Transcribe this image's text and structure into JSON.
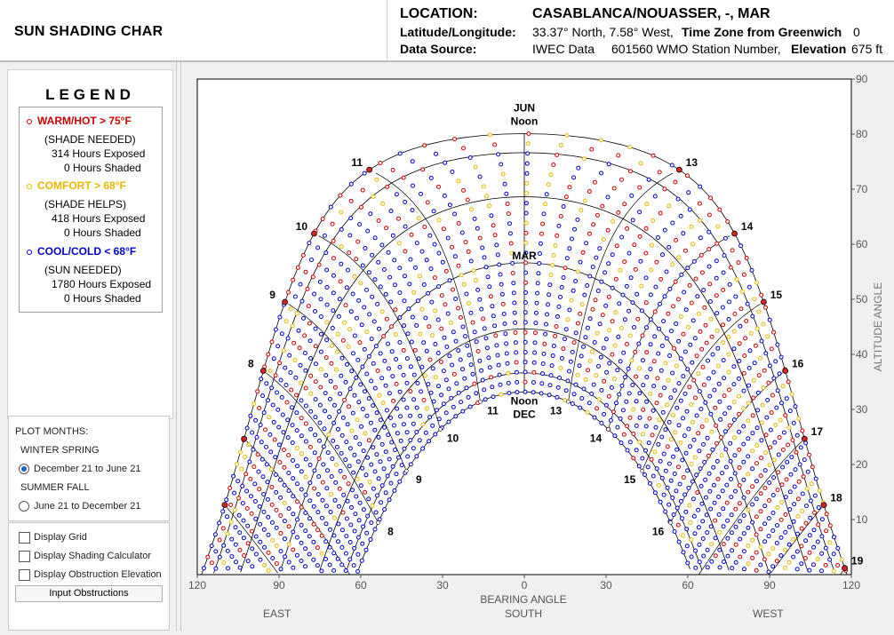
{
  "header": {
    "app_title": "SUN SHADING CHART",
    "location_label": "LOCATION:",
    "location_value": "CASABLANCA/NOUASSER, -, MAR",
    "latlon_label": "Latitude/Longitude:",
    "latlon_value": "33.37° North, 7.58° West,",
    "timezone_label": "Time Zone from Greenwich",
    "timezone_value": "0",
    "source_label": "Data Source:",
    "source_value": "IWEC Data",
    "station_value": "601560 WMO Station Number,",
    "elevation_label": "Elevation",
    "elevation_value": "675 ft"
  },
  "legend": {
    "title": "LEGEND",
    "warm": {
      "label": "WARM/HOT  > 75°F",
      "note": "(SHADE NEEDED)",
      "exposed": "314 Hours Exposed",
      "shaded": "0 Hours Shaded",
      "color": "#cc0000"
    },
    "comfort": {
      "label": "COMFORT  > 68°F",
      "note": "(SHADE HELPS)",
      "exposed": "418 Hours Exposed",
      "shaded": "0 Hours Shaded",
      "color": "#e6b800"
    },
    "cool": {
      "label": "COOL/COLD  < 68°F",
      "note": "(SUN NEEDED)",
      "exposed": "1780 Hours Exposed",
      "shaded": "0 Hours Shaded",
      "color": "#0000cc"
    }
  },
  "plot_months": {
    "title": "PLOT MONTHS:",
    "group1": "WINTER SPRING",
    "option1": "December 21 to June 21",
    "group2": "SUMMER FALL",
    "option2": "June 21 to December 21",
    "selected": "December 21 to June 21"
  },
  "options": {
    "display_grid": "Display Grid",
    "shading_calc": "Display Shading Calculator",
    "obstruction_elev": "Display Obstruction Elevation",
    "input_obstructions": "Input Obstructions"
  },
  "chart_data": {
    "type": "scatter",
    "title": "",
    "xlabel": "BEARING ANGLE",
    "xlabel2": "SOUTH",
    "ylabel": "ALTITUDE ANGLE",
    "xlim": [
      -120,
      120
    ],
    "ylim": [
      0,
      90
    ],
    "x_ticks": [
      -120,
      -90,
      -60,
      -30,
      0,
      30,
      60,
      90,
      120
    ],
    "x_tick_labels": [
      "120",
      "90",
      "60",
      "30",
      "0",
      "30",
      "60",
      "90",
      "120"
    ],
    "y_ticks": [
      10,
      20,
      30,
      40,
      50,
      60,
      70,
      80,
      90
    ],
    "direction_labels": {
      "east": "EAST",
      "south": "SOUTH",
      "west": "WEST"
    },
    "latitude": 33.37,
    "day_curve_labels": {
      "jun": "JUN",
      "mar": "MAR",
      "dec": "DEC",
      "noon": "Noon"
    },
    "hour_labels_summer": [
      "8",
      "9",
      "10",
      "11",
      "13",
      "14",
      "15",
      "16",
      "17",
      "18",
      "19"
    ],
    "hour_labels_winter": [
      "8",
      "9",
      "10",
      "11",
      "13",
      "14",
      "15",
      "16"
    ],
    "summer_hour_marks": [
      6,
      7,
      8,
      9,
      10,
      11,
      13,
      14,
      15,
      16,
      17,
      18,
      19
    ],
    "winter_hour_marks": [
      8,
      9,
      10,
      11,
      13,
      14,
      15,
      16
    ],
    "declination_curves": [
      23.45,
      -23.45,
      0,
      12,
      20,
      -12,
      -20
    ],
    "series": [
      {
        "name": "WARM/HOT",
        "color": "#cc0000"
      },
      {
        "name": "COMFORT",
        "color": "#e6b800"
      },
      {
        "name": "COOL/COLD",
        "color": "#0000cc"
      }
    ]
  }
}
